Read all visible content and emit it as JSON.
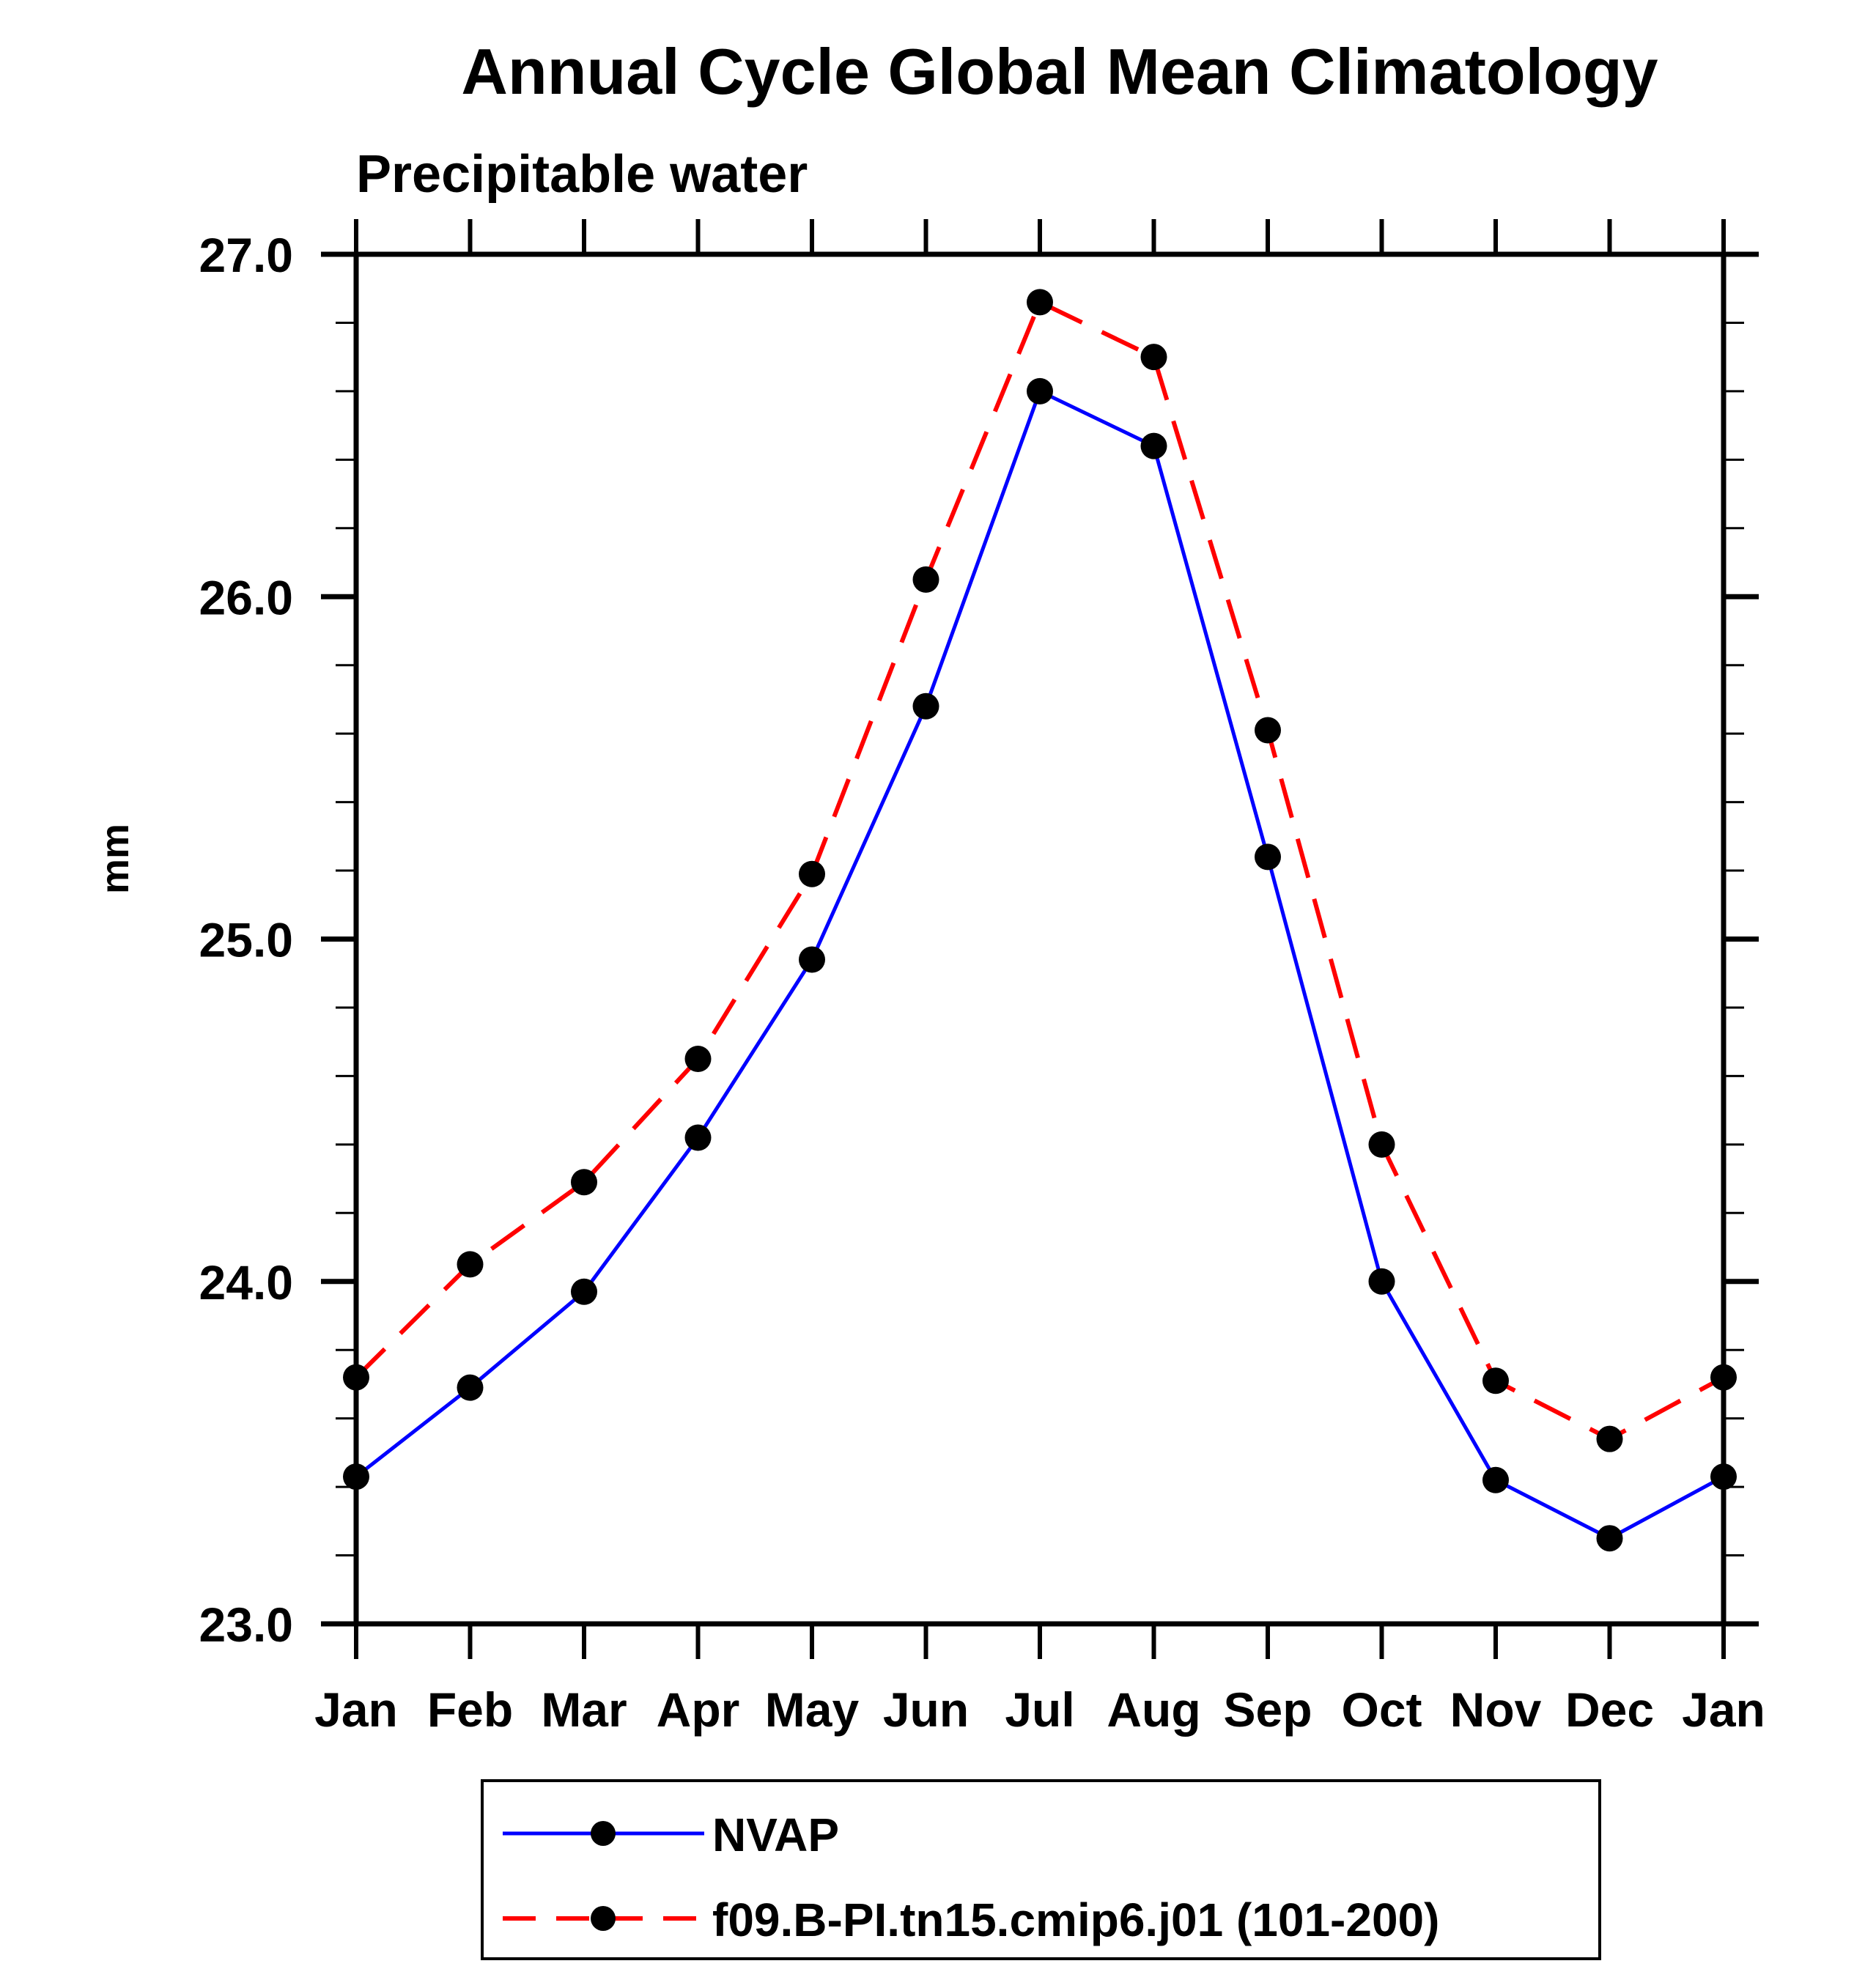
{
  "page": {
    "background": "#ffffff",
    "text_color": "#000000"
  },
  "chart": {
    "title": "Annual Cycle Global Mean Climatology",
    "subtitle": "Precipitable water",
    "ylabel": "mm"
  },
  "chart_data": {
    "type": "line",
    "title": "Annual Cycle Global Mean Climatology",
    "subtitle": "Precipitable water",
    "xlabel": "",
    "ylabel": "mm",
    "x": [
      "Jan",
      "Feb",
      "Mar",
      "Apr",
      "May",
      "Jun",
      "Jul",
      "Aug",
      "Sep",
      "Oct",
      "Nov",
      "Dec",
      "Jan"
    ],
    "yaxis": {
      "min": 23.0,
      "max": 27.0,
      "major_step": 1.0,
      "minor_step": 0.2,
      "major_tick_labels": [
        "23.0",
        "24.0",
        "25.0",
        "26.0",
        "27.0"
      ]
    },
    "grid": false,
    "legend_position": "bottom",
    "series": [
      {
        "name": "NVAP",
        "color": "#0000ff",
        "style": "solid",
        "dash": "",
        "line_width": 5,
        "marker": "filled-circle",
        "marker_color": "#000000",
        "values": [
          23.43,
          23.69,
          23.97,
          24.42,
          24.94,
          25.68,
          26.6,
          26.44,
          25.24,
          24.0,
          23.42,
          23.25,
          23.43
        ]
      },
      {
        "name": "f09.B-PI.tn15.cmip6.j01 (101-200)",
        "color": "#ff0000",
        "style": "dashed",
        "dash": "55 30",
        "line_width": 6,
        "marker": "filled-circle",
        "marker_color": "#000000",
        "values": [
          23.72,
          24.05,
          24.29,
          24.65,
          25.19,
          26.05,
          26.86,
          26.7,
          25.61,
          24.4,
          23.71,
          23.54,
          23.72
        ]
      }
    ]
  }
}
